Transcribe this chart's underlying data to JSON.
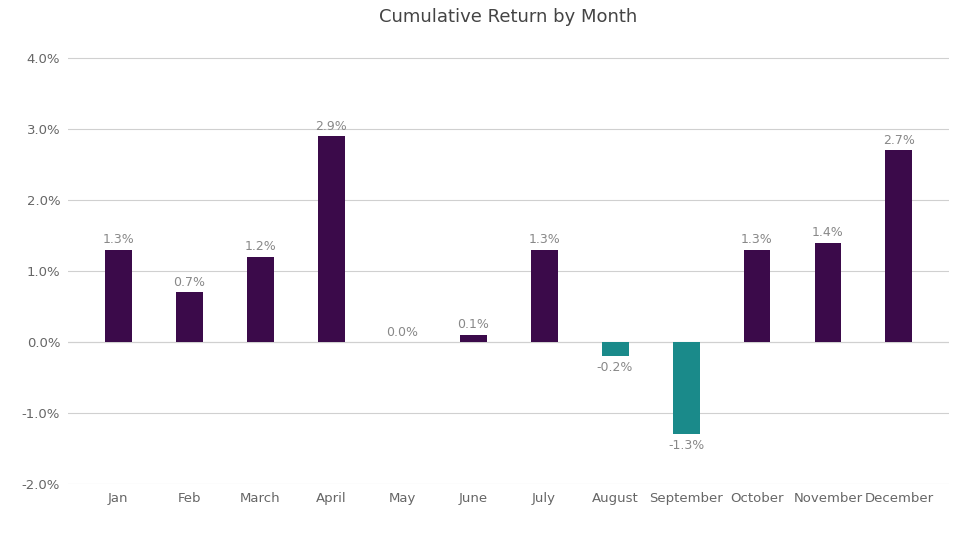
{
  "title": "Cumulative Return by Month",
  "categories": [
    "Jan",
    "Feb",
    "March",
    "April",
    "May",
    "June",
    "July",
    "August",
    "September",
    "October",
    "November",
    "December"
  ],
  "values": [
    1.3,
    0.7,
    1.2,
    2.9,
    0.0,
    0.1,
    1.3,
    -0.2,
    -1.3,
    1.3,
    1.4,
    2.7
  ],
  "bar_colors": [
    "#3b0a4a",
    "#3b0a4a",
    "#3b0a4a",
    "#3b0a4a",
    "#3b0a4a",
    "#3b0a4a",
    "#3b0a4a",
    "#1a8a8a",
    "#1a8a8a",
    "#3b0a4a",
    "#3b0a4a",
    "#3b0a4a"
  ],
  "ylim": [
    -2.0,
    4.2
  ],
  "yticks": [
    -2.0,
    -1.0,
    0.0,
    1.0,
    2.0,
    3.0,
    4.0
  ],
  "background_color": "#ffffff",
  "grid_color": "#d0d0d0",
  "title_fontsize": 13,
  "tick_fontsize": 9.5,
  "bar_label_color": "#888888",
  "bar_label_fontsize": 9,
  "bar_width": 0.38
}
